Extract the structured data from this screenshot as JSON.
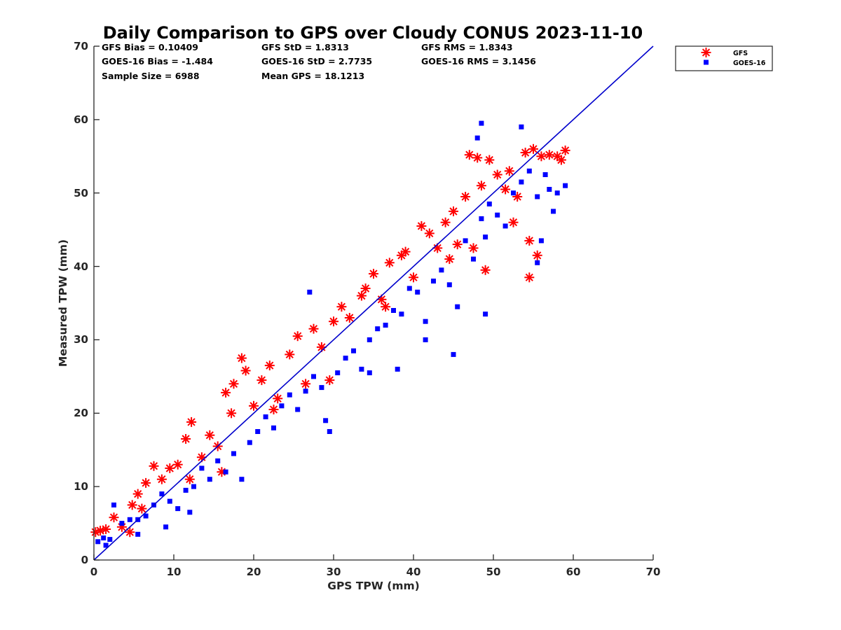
{
  "chart_data": {
    "type": "scatter",
    "title": "Daily Comparison to GPS over Cloudy CONUS 2023-11-10",
    "xlabel": "GPS TPW (mm)",
    "ylabel": "Measured TPW (mm)",
    "xlim": [
      0,
      70
    ],
    "ylim": [
      0,
      70
    ],
    "x_ticks": [
      "0",
      "10",
      "20",
      "30",
      "40",
      "50",
      "60",
      "70"
    ],
    "y_ticks": [
      "0",
      "10",
      "20",
      "30",
      "40",
      "50",
      "60",
      "70"
    ],
    "grid": false,
    "legend_position": "outside-top-right",
    "stats": [
      [
        "GFS Bias = 0.10409",
        "GFS StD = 1.8313",
        "GFS RMS = 1.8343"
      ],
      [
        "GOES-16 Bias = -1.484",
        "GOES-16 StD = 2.7735",
        "GOES-16 RMS = 3.1456"
      ],
      [
        "Sample Size = 6988",
        "Mean GPS = 18.1213"
      ]
    ],
    "reference_line": {
      "label": "1:1 line",
      "points": [
        [
          0,
          0
        ],
        [
          70,
          70
        ]
      ],
      "color": "#0000cc"
    },
    "series": [
      {
        "name": "GFS",
        "marker": "asterisk",
        "color": "#ff0000",
        "points": [
          [
            0.2,
            3.8
          ],
          [
            0.8,
            4.0
          ],
          [
            1.5,
            4.2
          ],
          [
            2.5,
            5.8
          ],
          [
            4.5,
            3.8
          ],
          [
            4.8,
            7.5
          ],
          [
            5.5,
            9.0
          ],
          [
            6.5,
            10.5
          ],
          [
            7.5,
            12.8
          ],
          [
            8.5,
            11.0
          ],
          [
            9.5,
            12.5
          ],
          [
            10.5,
            13.0
          ],
          [
            11.5,
            16.5
          ],
          [
            12.2,
            18.8
          ],
          [
            13.5,
            14.0
          ],
          [
            14.5,
            17.0
          ],
          [
            15.5,
            15.5
          ],
          [
            16.5,
            22.8
          ],
          [
            17.2,
            20.0
          ],
          [
            17.5,
            24.0
          ],
          [
            18.5,
            27.5
          ],
          [
            19.0,
            25.8
          ],
          [
            20.0,
            21.0
          ],
          [
            21.0,
            24.5
          ],
          [
            22.0,
            26.5
          ],
          [
            23.0,
            22.0
          ],
          [
            24.5,
            28.0
          ],
          [
            25.5,
            30.5
          ],
          [
            26.5,
            24.0
          ],
          [
            27.5,
            31.5
          ],
          [
            28.5,
            29.0
          ],
          [
            29.5,
            24.5
          ],
          [
            30.0,
            32.5
          ],
          [
            31.0,
            34.5
          ],
          [
            32.0,
            33.0
          ],
          [
            33.5,
            36.0
          ],
          [
            35.0,
            39.0
          ],
          [
            36.0,
            35.5
          ],
          [
            37.0,
            40.5
          ],
          [
            38.5,
            41.5
          ],
          [
            39.0,
            42.0
          ],
          [
            40.0,
            38.5
          ],
          [
            41.0,
            45.5
          ],
          [
            42.0,
            44.5
          ],
          [
            43.0,
            42.5
          ],
          [
            44.0,
            46.0
          ],
          [
            45.0,
            47.5
          ],
          [
            45.5,
            43.0
          ],
          [
            46.5,
            49.5
          ],
          [
            47.0,
            55.2
          ],
          [
            48.0,
            54.8
          ],
          [
            48.5,
            51.0
          ],
          [
            49.5,
            54.5
          ],
          [
            50.5,
            52.5
          ],
          [
            51.5,
            50.5
          ],
          [
            52.0,
            53.0
          ],
          [
            53.0,
            49.5
          ],
          [
            54.0,
            55.5
          ],
          [
            54.5,
            43.5
          ],
          [
            54.5,
            38.5
          ],
          [
            55.0,
            56.0
          ],
          [
            55.5,
            41.5
          ],
          [
            56.0,
            55.0
          ],
          [
            57.0,
            55.2
          ],
          [
            58.0,
            55.0
          ],
          [
            58.5,
            54.5
          ],
          [
            59.0,
            55.8
          ],
          [
            49.0,
            39.5
          ],
          [
            47.5,
            42.5
          ],
          [
            44.5,
            41.0
          ],
          [
            34.0,
            37.0
          ],
          [
            36.5,
            34.5
          ],
          [
            22.5,
            20.5
          ],
          [
            16.0,
            12.0
          ],
          [
            12.0,
            11.0
          ],
          [
            6.0,
            7.0
          ],
          [
            3.5,
            4.5
          ],
          [
            52.5,
            46.0
          ]
        ]
      },
      {
        "name": "GOES-16",
        "marker": "square",
        "color": "#0000ff",
        "points": [
          [
            0.5,
            2.5
          ],
          [
            1.2,
            3.0
          ],
          [
            2.0,
            2.8
          ],
          [
            2.5,
            7.5
          ],
          [
            3.5,
            5.0
          ],
          [
            4.5,
            5.5
          ],
          [
            5.5,
            5.5
          ],
          [
            6.5,
            6.0
          ],
          [
            7.5,
            7.5
          ],
          [
            8.5,
            9.0
          ],
          [
            9.5,
            8.0
          ],
          [
            10.5,
            7.0
          ],
          [
            11.5,
            9.5
          ],
          [
            12.5,
            10.0
          ],
          [
            13.5,
            12.5
          ],
          [
            14.5,
            11.0
          ],
          [
            15.5,
            13.5
          ],
          [
            16.5,
            12.0
          ],
          [
            17.5,
            14.5
          ],
          [
            18.5,
            11.0
          ],
          [
            19.5,
            16.0
          ],
          [
            20.5,
            17.5
          ],
          [
            21.5,
            19.5
          ],
          [
            22.5,
            18.0
          ],
          [
            23.5,
            21.0
          ],
          [
            24.5,
            22.5
          ],
          [
            25.5,
            20.5
          ],
          [
            26.5,
            23.0
          ],
          [
            27.5,
            25.0
          ],
          [
            28.5,
            23.5
          ],
          [
            29.0,
            19.0
          ],
          [
            29.5,
            17.5
          ],
          [
            30.5,
            25.5
          ],
          [
            31.5,
            27.5
          ],
          [
            32.5,
            28.5
          ],
          [
            33.5,
            26.0
          ],
          [
            34.5,
            30.0
          ],
          [
            35.5,
            31.5
          ],
          [
            36.5,
            32.0
          ],
          [
            37.5,
            34.0
          ],
          [
            38.5,
            33.5
          ],
          [
            39.5,
            37.0
          ],
          [
            40.5,
            36.5
          ],
          [
            41.5,
            32.5
          ],
          [
            42.5,
            38.0
          ],
          [
            43.5,
            39.5
          ],
          [
            44.5,
            37.5
          ],
          [
            45.0,
            28.0
          ],
          [
            46.5,
            43.5
          ],
          [
            47.5,
            41.0
          ],
          [
            48.5,
            46.5
          ],
          [
            49.0,
            33.5
          ],
          [
            49.5,
            48.5
          ],
          [
            50.5,
            47.0
          ],
          [
            51.5,
            45.5
          ],
          [
            52.5,
            50.0
          ],
          [
            53.5,
            51.5
          ],
          [
            54.5,
            53.0
          ],
          [
            55.5,
            49.5
          ],
          [
            56.5,
            52.5
          ],
          [
            57.0,
            50.5
          ],
          [
            58.0,
            50.0
          ],
          [
            59.0,
            51.0
          ],
          [
            48.0,
            57.5
          ],
          [
            48.5,
            59.5
          ],
          [
            53.5,
            59.0
          ],
          [
            27.0,
            36.5
          ],
          [
            34.5,
            25.5
          ],
          [
            38.0,
            26.0
          ],
          [
            41.5,
            30.0
          ],
          [
            45.5,
            34.5
          ],
          [
            49.0,
            44.0
          ],
          [
            55.5,
            40.5
          ],
          [
            57.5,
            47.5
          ],
          [
            56.0,
            43.5
          ],
          [
            12.0,
            6.5
          ],
          [
            9.0,
            4.5
          ],
          [
            5.5,
            3.5
          ],
          [
            1.5,
            2.0
          ]
        ]
      }
    ]
  }
}
